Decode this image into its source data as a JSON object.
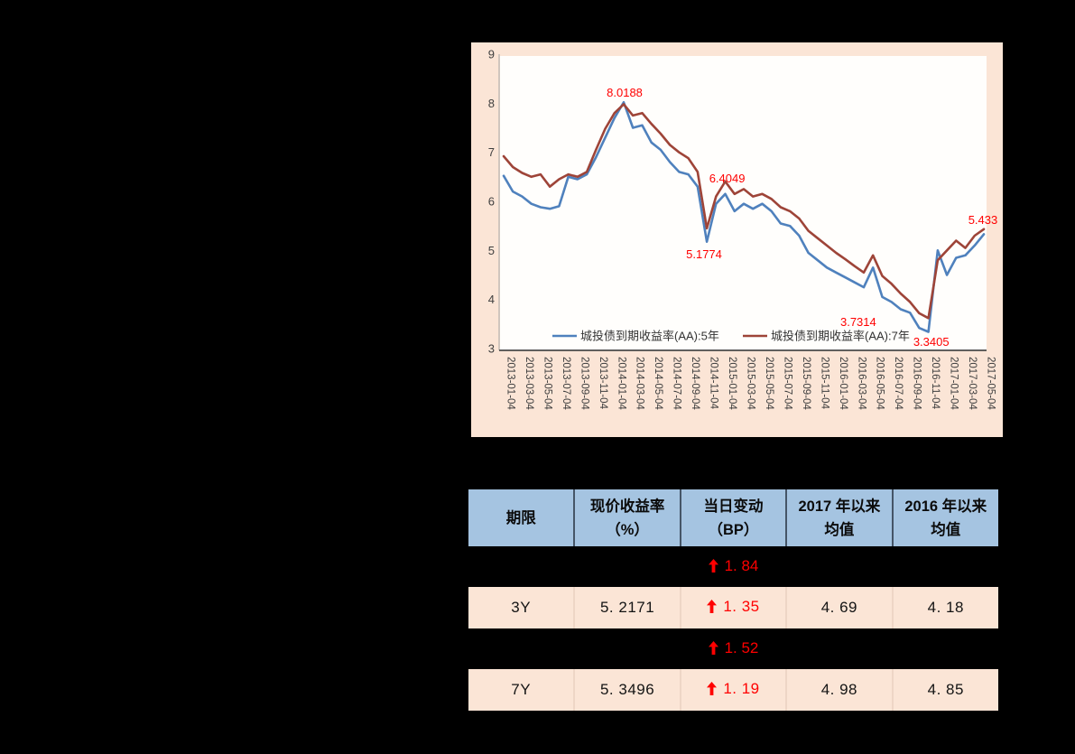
{
  "page": {
    "background": "#000000"
  },
  "chart": {
    "background": "#fbe5d6",
    "plot_background": "#fffefc",
    "axis_text_color": "#3f3f3f",
    "annotation_color": "#ff0000",
    "legend": [
      {
        "label": "城投债到期收益率(AA):5年",
        "color": "#4f81bd"
      },
      {
        "label": "城投债到期收益率(AA):7年",
        "color": "#9e4438"
      }
    ]
  },
  "chart_data": {
    "type": "line",
    "title": "",
    "xlabel": "",
    "ylabel": "",
    "ylim": [
      3,
      9
    ],
    "y_ticks": [
      3,
      4,
      5,
      6,
      7,
      8,
      9
    ],
    "grid": false,
    "legend_position": "bottom-inside",
    "x_start": "2013-01",
    "x_step": "1 month",
    "x_tick_labels": [
      "2013-01-04",
      "2013-03-04",
      "2013-05-04",
      "2013-07-04",
      "2013-09-04",
      "2013-11-04",
      "2014-01-04",
      "2014-03-04",
      "2014-05-04",
      "2014-07-04",
      "2014-09-04",
      "2014-11-04",
      "2015-01-04",
      "2015-03-04",
      "2015-05-04",
      "2015-07-04",
      "2015-09-04",
      "2015-11-04",
      "2016-01-04",
      "2016-03-04",
      "2016-05-04",
      "2016-07-04",
      "2016-09-04",
      "2016-11-04",
      "2017-01-04",
      "2017-03-04",
      "2017-05-04"
    ],
    "series": [
      {
        "name": "城投债到期收益率(AA):5年",
        "color": "#4f81bd",
        "values": [
          6.52,
          6.2,
          6.1,
          5.95,
          5.88,
          5.85,
          5.9,
          6.5,
          6.45,
          6.55,
          6.9,
          7.3,
          7.7,
          8.0188,
          7.5,
          7.55,
          7.2,
          7.05,
          6.8,
          6.6,
          6.55,
          6.3,
          5.1774,
          5.95,
          6.15,
          5.8,
          5.95,
          5.85,
          5.95,
          5.8,
          5.55,
          5.5,
          5.3,
          4.95,
          4.8,
          4.65,
          4.55,
          4.45,
          4.35,
          4.25,
          4.65,
          4.05,
          3.95,
          3.8,
          3.7314,
          3.42,
          3.3405,
          5.0,
          4.5,
          4.85,
          4.9,
          5.1,
          5.33
        ]
      },
      {
        "name": "城投债到期收益率(AA):7年",
        "color": "#9e4438",
        "values": [
          6.92,
          6.7,
          6.58,
          6.5,
          6.55,
          6.3,
          6.45,
          6.55,
          6.5,
          6.6,
          7.05,
          7.48,
          7.8,
          7.98,
          7.75,
          7.8,
          7.58,
          7.38,
          7.15,
          7.0,
          6.88,
          6.6,
          5.45,
          6.1,
          6.4049,
          6.15,
          6.25,
          6.1,
          6.15,
          6.05,
          5.88,
          5.8,
          5.65,
          5.4,
          5.25,
          5.1,
          4.95,
          4.82,
          4.68,
          4.55,
          4.9,
          4.48,
          4.32,
          4.12,
          3.95,
          3.72,
          3.62,
          4.8,
          5.0,
          5.2,
          5.05,
          5.3,
          5.433
        ]
      }
    ],
    "annotations": [
      {
        "text": "8.0188",
        "xi": 13.1,
        "y": 8.21
      },
      {
        "text": "6.4049",
        "xi": 24.2,
        "y": 6.46
      },
      {
        "text": "5.1774",
        "xi": 21.7,
        "y": 4.91
      },
      {
        "text": "3.7314",
        "xi": 38.4,
        "y": 3.53
      },
      {
        "text": "3.3405",
        "xi": 46.3,
        "y": 3.13
      },
      {
        "text": "5.433",
        "xi": 51.9,
        "y": 5.61
      }
    ]
  },
  "table": {
    "header_bg": "#a5c4e1",
    "row_bg": "#fbe5d6",
    "up_color": "#ff0000",
    "columns": [
      {
        "line1": "期限",
        "line2": ""
      },
      {
        "line1": "现价收益率",
        "line2": "（%）"
      },
      {
        "line1": "当日变动",
        "line2": "（BP）"
      },
      {
        "line1": "2017 年以来",
        "line2": "均值"
      },
      {
        "line1": "2016 年以来",
        "line2": "均值"
      }
    ],
    "rows": [
      {
        "type": "spacer",
        "change_dir": "up",
        "change": "1. 84"
      },
      {
        "type": "data",
        "tenor": "3Y",
        "yield": "5. 2171",
        "change_dir": "up",
        "change": "1. 35",
        "avg_2017": "4. 69",
        "avg_2016": "4. 18"
      },
      {
        "type": "spacer",
        "change_dir": "up",
        "change": "1. 52"
      },
      {
        "type": "data",
        "tenor": "7Y",
        "yield": "5. 3496",
        "change_dir": "up",
        "change": "1. 19",
        "avg_2017": "4. 98",
        "avg_2016": "4. 85"
      }
    ]
  }
}
